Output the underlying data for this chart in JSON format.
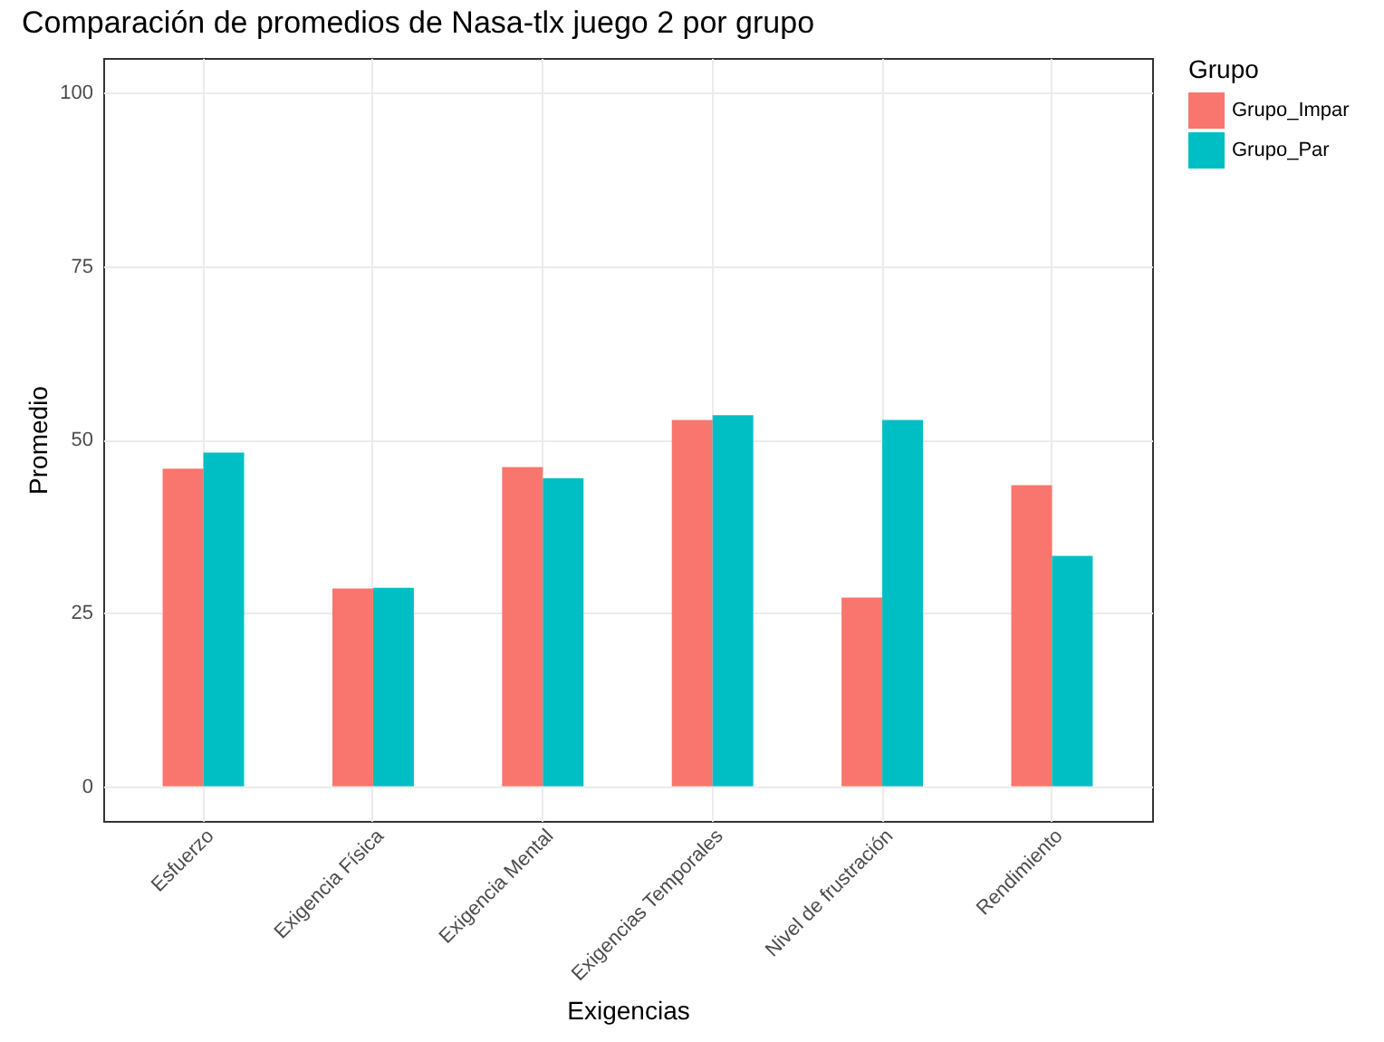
{
  "chart_data": {
    "type": "bar",
    "title": "Comparación de promedios de Nasa-tlx juego 2 por grupo",
    "xlabel": "Exigencias",
    "ylabel": "Promedio",
    "legend_title": "Grupo",
    "categories": [
      "Esfuerzo",
      "Exigencia Física",
      "Exigencia Mental",
      "Exigencias Temporales",
      "Nivel de frustración",
      "Rendimiento"
    ],
    "series": [
      {
        "name": "Grupo_Impar",
        "color": "#f8766d",
        "values": [
          45.8,
          28.5,
          46.0,
          52.8,
          27.2,
          43.4
        ]
      },
      {
        "name": "Grupo_Par",
        "color": "#00bfc4",
        "values": [
          48.1,
          28.6,
          44.4,
          53.5,
          52.8,
          33.2
        ]
      }
    ],
    "ylim": [
      -5,
      105
    ],
    "yticks": [
      0,
      25,
      50,
      75,
      100
    ],
    "grid": true,
    "legend": "right"
  }
}
